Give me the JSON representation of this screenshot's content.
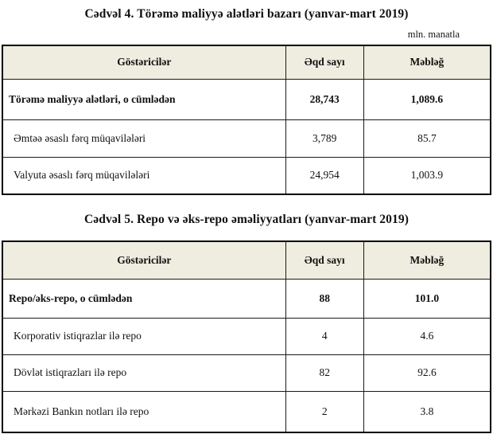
{
  "unit_note": "mln. manatla",
  "tables": [
    {
      "title": "Cədvəl 4. Törəmə maliyyə alətləri bazarı (yanvar-mart 2019)",
      "columns": {
        "label": "Göstəricilər",
        "deals": "Əqd sayı",
        "amount": "Məbləğ"
      },
      "rows": [
        {
          "label": "Törəmə maliyyə alətləri, o cümlədən",
          "deals": "28,743",
          "amount": "1,089.6",
          "bold": true
        },
        {
          "label": "Əmtəə əsaslı fərq müqavilələri",
          "deals": "3,789",
          "amount": "85.7",
          "bold": false
        },
        {
          "label": "Valyuta əsaslı fərq müqavilələri",
          "deals": "24,954",
          "amount": "1,003.9",
          "bold": false
        }
      ]
    },
    {
      "title": "Cədvəl 5. Repo və əks-repo əməliyyatları (yanvar-mart 2019)",
      "columns": {
        "label": "Göstəricilər",
        "deals": "Əqd sayı",
        "amount": "Məbləğ"
      },
      "rows": [
        {
          "label": "Repo/əks-repo, o cümlədən",
          "deals": "88",
          "amount": "101.0",
          "bold": true
        },
        {
          "label": "Korporativ istiqrazlar ilə repo",
          "deals": "4",
          "amount": "4.6",
          "bold": false
        },
        {
          "label": "Dövlət istiqrazları ilə repo",
          "deals": "82",
          "amount": "92.6",
          "bold": false
        },
        {
          "label": "Mərkəzi Bankın notları ilə repo",
          "deals": "2",
          "amount": "3.8",
          "bold": false
        }
      ]
    }
  ]
}
